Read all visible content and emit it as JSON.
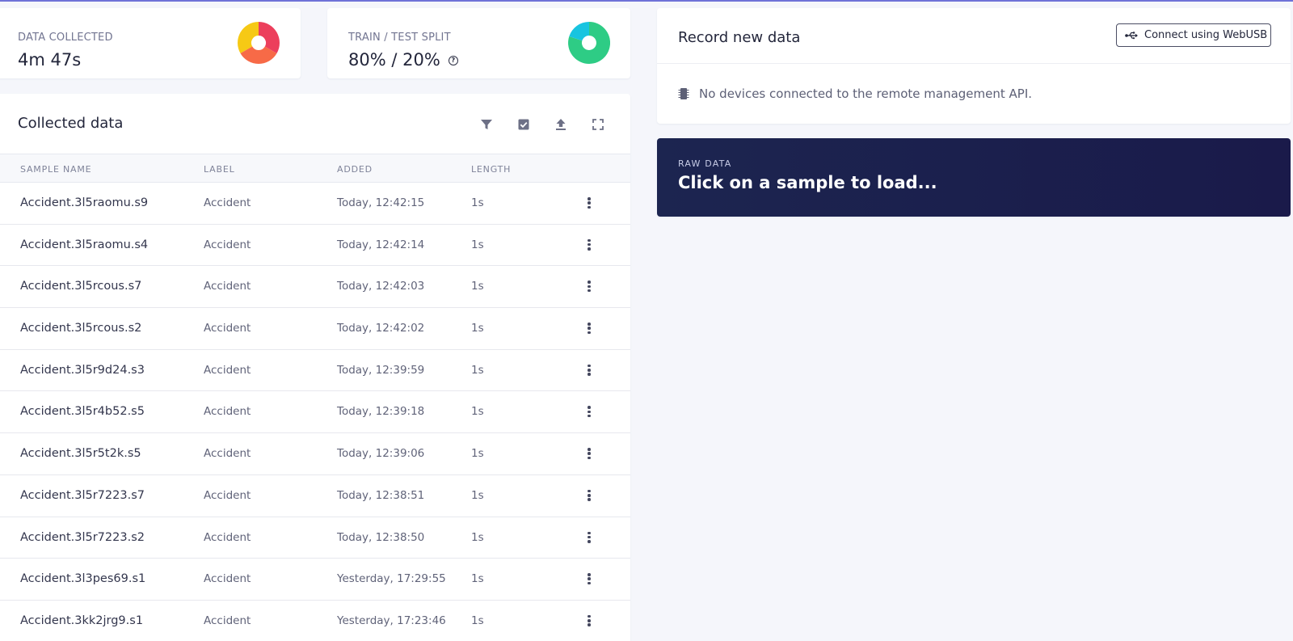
{
  "stats": {
    "collected": {
      "label": "DATA COLLECTED",
      "value": "4m 47s"
    },
    "split": {
      "label": "TRAIN / TEST SPLIT",
      "value": "80% / 20%"
    }
  },
  "collected": {
    "title": "Collected data",
    "columns": [
      "SAMPLE NAME",
      "LABEL",
      "ADDED",
      "LENGTH"
    ],
    "rows": [
      {
        "name": "Accident.3l5raomu.s9",
        "label": "Accident",
        "added": "Today, 12:42:15",
        "length": "1s"
      },
      {
        "name": "Accident.3l5raomu.s4",
        "label": "Accident",
        "added": "Today, 12:42:14",
        "length": "1s"
      },
      {
        "name": "Accident.3l5rcous.s7",
        "label": "Accident",
        "added": "Today, 12:42:03",
        "length": "1s"
      },
      {
        "name": "Accident.3l5rcous.s2",
        "label": "Accident",
        "added": "Today, 12:42:02",
        "length": "1s"
      },
      {
        "name": "Accident.3l5r9d24.s3",
        "label": "Accident",
        "added": "Today, 12:39:59",
        "length": "1s"
      },
      {
        "name": "Accident.3l5r4b52.s5",
        "label": "Accident",
        "added": "Today, 12:39:18",
        "length": "1s"
      },
      {
        "name": "Accident.3l5r5t2k.s5",
        "label": "Accident",
        "added": "Today, 12:39:06",
        "length": "1s"
      },
      {
        "name": "Accident.3l5r7223.s7",
        "label": "Accident",
        "added": "Today, 12:38:51",
        "length": "1s"
      },
      {
        "name": "Accident.3l5r7223.s2",
        "label": "Accident",
        "added": "Today, 12:38:50",
        "length": "1s"
      },
      {
        "name": "Accident.3l3pes69.s1",
        "label": "Accident",
        "added": "Yesterday, 17:29:55",
        "length": "1s"
      },
      {
        "name": "Accident.3kk2jrg9.s1",
        "label": "Accident",
        "added": "Yesterday, 17:23:46",
        "length": "1s"
      }
    ]
  },
  "record": {
    "title": "Record new data",
    "webusb_label": "Connect using WebUSB",
    "message": "No devices connected to the remote management API."
  },
  "raw": {
    "label": "RAW DATA",
    "title": "Click on a sample to load..."
  },
  "colors": {
    "accent": "#6f72d8",
    "donut_yellow": "#f6c915",
    "donut_red": "#ec3f5c",
    "donut_orange": "#f76a47",
    "donut_green": "#2ecc85",
    "donut_cyan": "#18c4e0",
    "raw_bg": "#1c2550"
  },
  "icons": [
    "filter-icon",
    "select-all-icon",
    "upload-icon",
    "fullscreen-icon",
    "usb-icon",
    "chip-icon",
    "help-icon",
    "kebab-menu-icon"
  ]
}
